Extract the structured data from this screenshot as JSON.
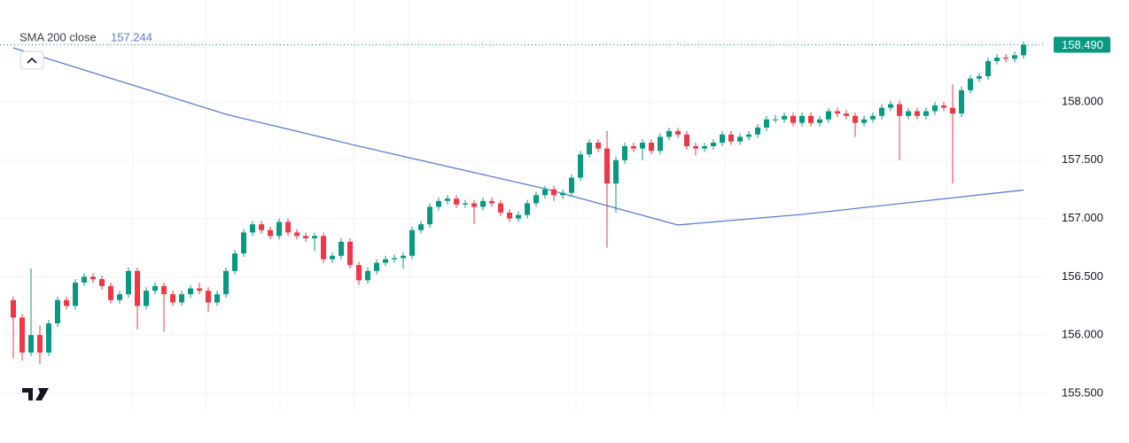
{
  "chart_data": {
    "type": "candlestick",
    "indicator": {
      "name": "SMA 200 close",
      "last_value": {
        "value": 157.244,
        "label": "157.244"
      },
      "color": "#5b7fd6",
      "x": [
        0,
        24,
        39,
        60,
        75,
        89,
        114
      ],
      "values": [
        158.464,
        157.894,
        157.62,
        157.255,
        156.944,
        157.035,
        157.244
      ]
    },
    "last_price": {
      "value": 158.49,
      "label": "158.490"
    },
    "up_color": "#089981",
    "down_color": "#f23645",
    "open": [
      156.3,
      156.15,
      155.85,
      156.0,
      155.85,
      156.1,
      156.3,
      156.25,
      156.45,
      156.5,
      156.48,
      156.42,
      156.3,
      156.35,
      156.55,
      156.25,
      156.38,
      156.42,
      156.35,
      156.28,
      156.35,
      156.4,
      156.38,
      156.28,
      156.35,
      156.55,
      156.7,
      156.88,
      156.95,
      156.9,
      156.85,
      156.97,
      156.88,
      156.85,
      156.83,
      156.85,
      156.65,
      156.68,
      156.8,
      156.6,
      156.47,
      156.55,
      156.62,
      156.65,
      156.66,
      156.68,
      156.9,
      156.95,
      157.1,
      157.15,
      157.17,
      157.12,
      157.13,
      157.1,
      157.15,
      157.13,
      157.05,
      157.0,
      157.03,
      157.13,
      157.2,
      157.25,
      157.2,
      157.22,
      157.35,
      157.55,
      157.65,
      157.6,
      157.3,
      157.5,
      157.62,
      157.6,
      157.65,
      157.58,
      157.7,
      157.75,
      157.72,
      157.62,
      157.6,
      157.62,
      157.65,
      157.72,
      157.66,
      157.7,
      157.72,
      157.78,
      157.85,
      157.85,
      157.88,
      157.82,
      157.88,
      157.82,
      157.85,
      157.92,
      157.9,
      157.88,
      157.82,
      157.85,
      157.88,
      157.95,
      157.98,
      157.88,
      157.92,
      157.88,
      157.92,
      157.97,
      157.95,
      157.9,
      158.1,
      158.2,
      158.22,
      158.35,
      158.38,
      158.37,
      158.4
    ],
    "high": [
      156.33,
      156.18,
      156.57,
      156.08,
      156.13,
      156.33,
      156.33,
      156.48,
      156.53,
      156.53,
      156.51,
      156.45,
      156.38,
      156.58,
      156.58,
      156.41,
      156.45,
      156.45,
      156.38,
      156.38,
      156.43,
      156.45,
      156.41,
      156.38,
      156.58,
      156.73,
      156.91,
      156.98,
      156.98,
      156.93,
      157.0,
      157.0,
      156.91,
      156.88,
      156.88,
      156.88,
      156.71,
      156.83,
      156.83,
      156.63,
      156.58,
      156.65,
      156.68,
      156.69,
      156.71,
      156.93,
      156.98,
      157.13,
      157.18,
      157.2,
      157.2,
      157.16,
      157.16,
      157.18,
      157.18,
      157.16,
      157.08,
      157.06,
      157.16,
      157.23,
      157.28,
      157.28,
      157.25,
      157.38,
      157.58,
      157.68,
      157.68,
      157.75,
      157.53,
      157.65,
      157.65,
      157.68,
      157.68,
      157.73,
      157.78,
      157.78,
      157.75,
      157.65,
      157.65,
      157.68,
      157.75,
      157.75,
      157.73,
      157.75,
      157.81,
      157.88,
      157.89,
      157.91,
      157.91,
      157.91,
      157.91,
      157.88,
      157.95,
      157.95,
      157.93,
      157.91,
      157.88,
      157.91,
      157.98,
      158.01,
      158.01,
      157.95,
      157.95,
      157.95,
      158.0,
      158.0,
      158.15,
      158.13,
      158.23,
      158.25,
      158.38,
      158.41,
      158.41,
      158.43,
      158.52
    ],
    "low": [
      155.8,
      155.78,
      155.82,
      155.75,
      155.82,
      156.07,
      156.22,
      156.22,
      156.42,
      156.45,
      156.39,
      156.27,
      156.27,
      156.32,
      156.05,
      156.22,
      156.35,
      156.03,
      156.25,
      156.25,
      156.32,
      156.35,
      156.2,
      156.25,
      156.32,
      156.52,
      156.67,
      156.85,
      156.87,
      156.82,
      156.82,
      156.85,
      156.82,
      156.8,
      156.72,
      156.62,
      156.62,
      156.65,
      156.57,
      156.43,
      156.44,
      156.52,
      156.59,
      156.62,
      156.57,
      156.65,
      156.87,
      156.92,
      157.07,
      157.12,
      157.09,
      157.09,
      156.95,
      157.07,
      157.1,
      157.02,
      156.97,
      156.97,
      157.0,
      157.1,
      157.17,
      157.15,
      157.17,
      157.19,
      157.32,
      157.52,
      157.57,
      156.75,
      157.05,
      157.47,
      157.57,
      157.5,
      157.55,
      157.55,
      157.67,
      157.69,
      157.59,
      157.54,
      157.57,
      157.59,
      157.62,
      157.63,
      157.63,
      157.67,
      157.69,
      157.75,
      157.82,
      157.82,
      157.79,
      157.79,
      157.79,
      157.79,
      157.82,
      157.87,
      157.85,
      157.7,
      157.79,
      157.82,
      157.85,
      157.92,
      157.5,
      157.85,
      157.85,
      157.85,
      157.89,
      157.92,
      157.3,
      157.87,
      158.07,
      158.17,
      158.19,
      158.32,
      158.34,
      158.34,
      158.37
    ],
    "close": [
      156.15,
      155.85,
      156.0,
      155.85,
      156.1,
      156.3,
      156.25,
      156.45,
      156.5,
      156.48,
      156.42,
      156.3,
      156.35,
      156.55,
      156.25,
      156.38,
      156.42,
      156.35,
      156.28,
      156.35,
      156.4,
      156.38,
      156.28,
      156.35,
      156.55,
      156.7,
      156.88,
      156.95,
      156.9,
      156.85,
      156.97,
      156.88,
      156.85,
      156.83,
      156.85,
      156.65,
      156.68,
      156.8,
      156.6,
      156.47,
      156.55,
      156.62,
      156.65,
      156.66,
      156.68,
      156.9,
      156.95,
      157.1,
      157.15,
      157.17,
      157.12,
      157.13,
      157.1,
      157.15,
      157.13,
      157.05,
      157.0,
      157.03,
      157.13,
      157.2,
      157.25,
      157.2,
      157.22,
      157.35,
      157.55,
      157.65,
      157.6,
      157.3,
      157.5,
      157.62,
      157.6,
      157.65,
      157.58,
      157.7,
      157.75,
      157.72,
      157.62,
      157.6,
      157.62,
      157.65,
      157.72,
      157.66,
      157.7,
      157.72,
      157.78,
      157.85,
      157.85,
      157.88,
      157.82,
      157.88,
      157.82,
      157.85,
      157.92,
      157.9,
      157.88,
      157.82,
      157.85,
      157.88,
      157.95,
      157.98,
      157.88,
      157.92,
      157.88,
      157.92,
      157.97,
      157.95,
      157.9,
      158.1,
      158.2,
      158.22,
      158.35,
      158.38,
      158.37,
      158.4,
      158.49
    ],
    "ylim": [
      155.34,
      158.874
    ],
    "yticks": [
      {
        "value": 155.5,
        "label": "155.500"
      },
      {
        "value": 156.0,
        "label": "156.000"
      },
      {
        "value": 156.5,
        "label": "156.500"
      },
      {
        "value": 157.0,
        "label": "157.000"
      },
      {
        "value": 157.5,
        "label": "157.500"
      },
      {
        "value": 158.0,
        "label": "158.000"
      }
    ],
    "grid": true
  }
}
